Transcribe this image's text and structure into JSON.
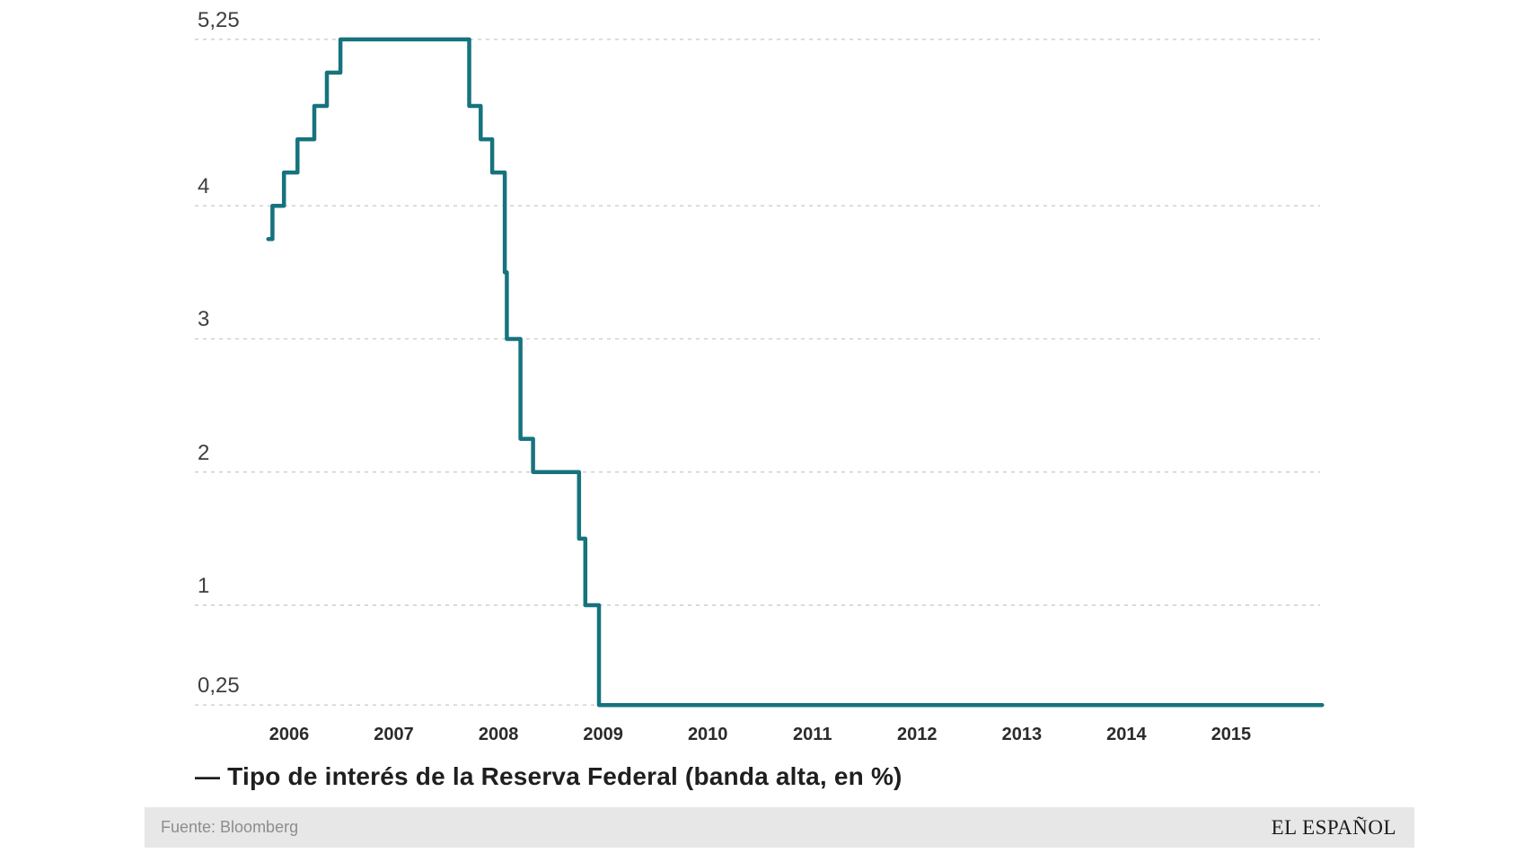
{
  "chart_data": {
    "type": "line",
    "line_style": "step-after",
    "legend": "— Tipo de interés de la Reserva Federal (banda alta, en %)",
    "series": [
      {
        "name": "Tipo de interés de la Reserva Federal (banda alta, en %)",
        "steps": [
          {
            "x_year": 2005.8,
            "rate": 3.75
          },
          {
            "x_year": 2005.84,
            "rate": 4.0
          },
          {
            "x_year": 2005.95,
            "rate": 4.25
          },
          {
            "x_year": 2006.08,
            "rate": 4.5
          },
          {
            "x_year": 2006.24,
            "rate": 4.75
          },
          {
            "x_year": 2006.36,
            "rate": 5.0
          },
          {
            "x_year": 2006.49,
            "rate": 5.25
          },
          {
            "x_year": 2007.72,
            "rate": 4.75
          },
          {
            "x_year": 2007.83,
            "rate": 4.5
          },
          {
            "x_year": 2007.94,
            "rate": 4.25
          },
          {
            "x_year": 2008.06,
            "rate": 3.5
          },
          {
            "x_year": 2008.08,
            "rate": 3.0
          },
          {
            "x_year": 2008.21,
            "rate": 2.25
          },
          {
            "x_year": 2008.33,
            "rate": 2.0
          },
          {
            "x_year": 2008.77,
            "rate": 1.5
          },
          {
            "x_year": 2008.83,
            "rate": 1.0
          },
          {
            "x_year": 2008.96,
            "rate": 0.25
          }
        ],
        "end_x_year": 2015.87
      }
    ],
    "y_ticks": [
      {
        "label": "5,25",
        "value": 5.25
      },
      {
        "label": "4",
        "value": 4
      },
      {
        "label": "3",
        "value": 3
      },
      {
        "label": "2",
        "value": 2
      },
      {
        "label": "1",
        "value": 1
      },
      {
        "label": "0,25",
        "value": 0.25
      }
    ],
    "x_ticks": [
      {
        "label": "2006",
        "year": 2006
      },
      {
        "label": "2007",
        "year": 2007
      },
      {
        "label": "2008",
        "year": 2008
      },
      {
        "label": "2009",
        "year": 2009
      },
      {
        "label": "2010",
        "year": 2010
      },
      {
        "label": "2011",
        "year": 2011
      },
      {
        "label": "2012",
        "year": 2012
      },
      {
        "label": "2013",
        "year": 2013
      },
      {
        "label": "2014",
        "year": 2014
      },
      {
        "label": "2015",
        "year": 2015
      }
    ],
    "ylim": [
      0.25,
      5.25
    ],
    "xlim_years": [
      2005.8,
      2015.87
    ],
    "grid": "horizontal-dashed",
    "legend_position": "bottom-left"
  },
  "footer": {
    "source": "Fuente: Bloomberg",
    "brand": "EL ESPAÑOL"
  },
  "colors": {
    "line": "#16737E",
    "grid": "#CDCDCD",
    "y_tick_text": "#3E3E3E",
    "x_tick_text": "#2B2B2B",
    "legend_text": "#1F1F1F",
    "source_text": "#8D8D8D",
    "footer_bg": "#E7E7E7",
    "brand_text": "#1A1A1A",
    "background": "#FFFFFF"
  }
}
